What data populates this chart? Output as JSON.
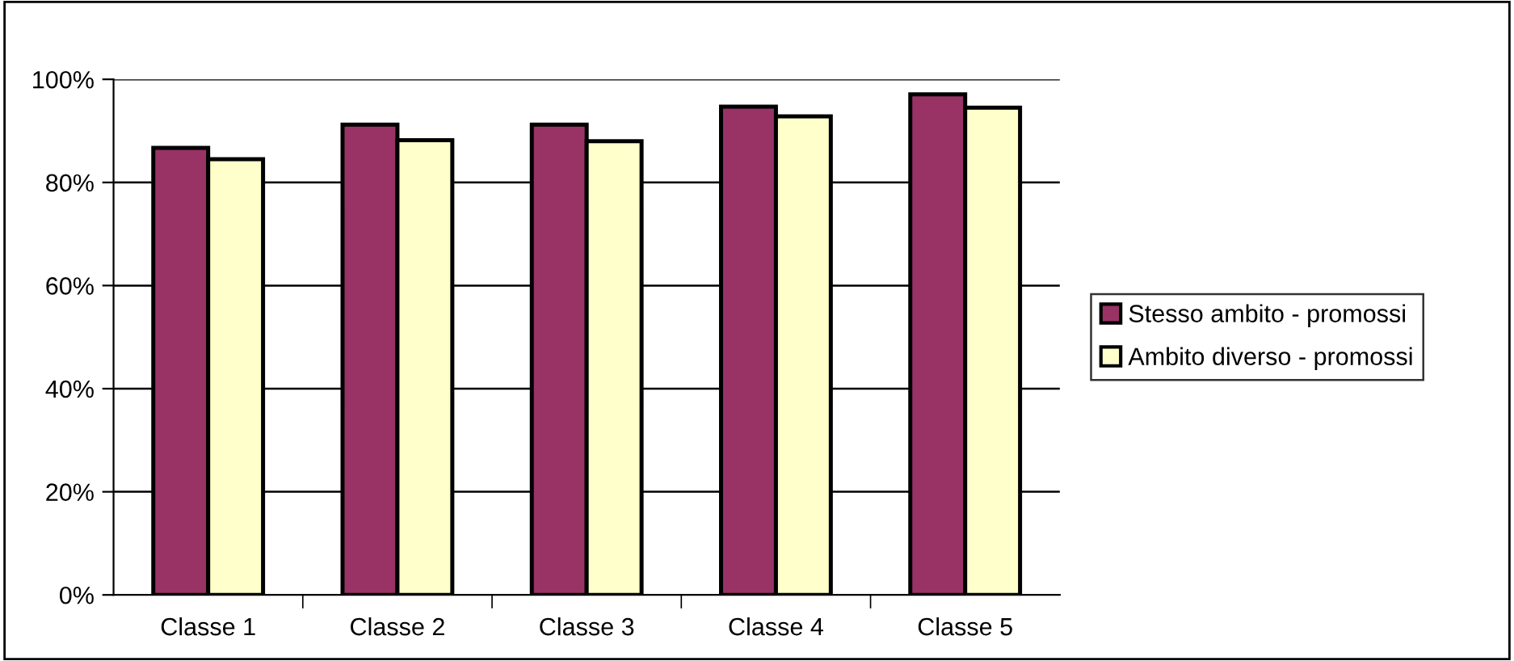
{
  "chart_data": {
    "type": "bar",
    "categories": [
      "Classe 1",
      "Classe 2",
      "Classe 3",
      "Classe 4",
      "Classe 5"
    ],
    "series": [
      {
        "name": "Stesso ambito - promossi",
        "color": "#993366",
        "values": [
          86.7,
          91.2,
          91.2,
          94.7,
          97.1
        ]
      },
      {
        "name": "Ambito diverso - promossi",
        "color": "#ffffcc",
        "values": [
          84.5,
          88.2,
          88.0,
          92.8,
          94.5
        ]
      }
    ],
    "ylim": [
      0,
      100
    ],
    "yticks": [
      {
        "value": 0,
        "label": "0%"
      },
      {
        "value": 20,
        "label": "20%"
      },
      {
        "value": 40,
        "label": "40%"
      },
      {
        "value": 60,
        "label": "60%"
      },
      {
        "value": 80,
        "label": "80%"
      },
      {
        "value": 100,
        "label": "100%"
      }
    ],
    "grid": "y",
    "legend": "right"
  }
}
